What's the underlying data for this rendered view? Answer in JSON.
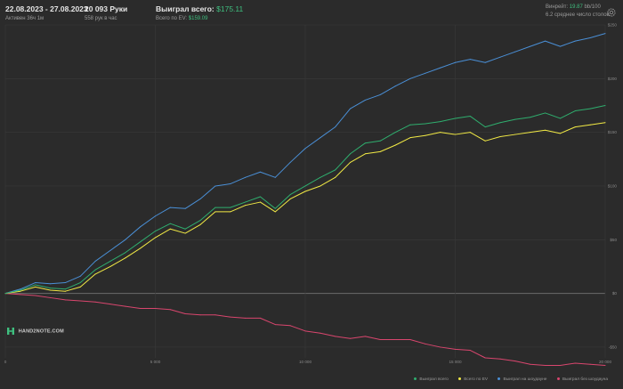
{
  "header": {
    "date_range": "22.08.2023 - 27.08.2023",
    "active": "Активен 36ч 1м",
    "hands": "20 093 Руки",
    "hands_per_hour": "558 рук в час",
    "won_label": "Выиграл всего:",
    "won_value": "$175.11",
    "ev_label": "Всего по EV:",
    "ev_value": "$159.09",
    "vinrate_label": "Винрейт:",
    "vinrate_value": "19.87",
    "vinrate_unit": "bb/100",
    "tables": "6.2 среднее число столов",
    "settings_icon": "gear-icon"
  },
  "logo": {
    "text": "HAND2NOTE.COM",
    "icon": "h2n-logo-icon"
  },
  "colors": {
    "background": "#2b2b2b",
    "grid": "#3a3a3a",
    "zero_line": "#6a6a6a",
    "won_total": "#2fae6e",
    "ev_total": "#f2ea45",
    "showdown": "#4a8fd6",
    "non_showdown": "#d9466e"
  },
  "chart_data": {
    "type": "line",
    "title": "",
    "xlabel": "",
    "ylabel": "",
    "xlim": [
      0,
      20000
    ],
    "ylim": [
      -60,
      250
    ],
    "x_ticks": [
      0,
      5000,
      10000,
      15000,
      20000
    ],
    "x_tick_labels": [
      "0",
      "5 000",
      "10 000",
      "15 000",
      "20 000"
    ],
    "y_ticks": [
      250,
      200,
      150,
      100,
      50,
      0,
      -50
    ],
    "y_tick_labels": [
      "$250",
      "$200",
      "$150",
      "$100",
      "$50",
      "$0",
      "-$50"
    ],
    "grid": true,
    "legend_position": "bottom-right",
    "x": [
      0,
      500,
      1000,
      1500,
      2000,
      2500,
      3000,
      3500,
      4000,
      4500,
      5000,
      5500,
      6000,
      6500,
      7000,
      7500,
      8000,
      8500,
      9000,
      9500,
      10000,
      10500,
      11000,
      11500,
      12000,
      12500,
      13000,
      13500,
      14000,
      14500,
      15000,
      15500,
      16000,
      16500,
      17000,
      17500,
      18000,
      18500,
      19000,
      19500,
      20000
    ],
    "series": [
      {
        "name": "Выиграл всего",
        "color_key": "won_total",
        "values": [
          0,
          3,
          8,
          5,
          4,
          10,
          22,
          30,
          38,
          48,
          58,
          65,
          60,
          68,
          80,
          80,
          85,
          90,
          79,
          92,
          100,
          108,
          115,
          130,
          140,
          142,
          150,
          157,
          158,
          160,
          163,
          165,
          155,
          159,
          162,
          164,
          168,
          163,
          170,
          172,
          175
        ]
      },
      {
        "name": "Всего по EV",
        "color_key": "ev_total",
        "values": [
          0,
          2,
          6,
          3,
          2,
          6,
          18,
          25,
          33,
          42,
          52,
          60,
          56,
          64,
          76,
          76,
          82,
          85,
          76,
          88,
          95,
          100,
          108,
          122,
          130,
          132,
          138,
          145,
          147,
          150,
          148,
          150,
          142,
          146,
          148,
          150,
          152,
          149,
          155,
          157,
          159
        ]
      },
      {
        "name": "Выиграл на шоудауне",
        "color_key": "showdown",
        "values": [
          0,
          4,
          10,
          9,
          10,
          16,
          30,
          40,
          50,
          62,
          72,
          80,
          79,
          88,
          100,
          102,
          108,
          113,
          108,
          122,
          135,
          145,
          155,
          172,
          180,
          185,
          193,
          200,
          205,
          210,
          215,
          218,
          215,
          220,
          225,
          230,
          235,
          230,
          235,
          238,
          242
        ]
      },
      {
        "name": "Выиграл без шоудауна",
        "color_key": "non_showdown",
        "values": [
          0,
          -1,
          -2,
          -4,
          -6,
          -7,
          -8,
          -10,
          -12,
          -14,
          -14,
          -15,
          -19,
          -20,
          -20,
          -22,
          -23,
          -23,
          -29,
          -30,
          -35,
          -37,
          -40,
          -42,
          -40,
          -43,
          -43,
          -43,
          -47,
          -50,
          -52,
          -53,
          -60,
          -61,
          -63,
          -66,
          -67,
          -67,
          -65,
          -66,
          -67
        ]
      }
    ]
  }
}
